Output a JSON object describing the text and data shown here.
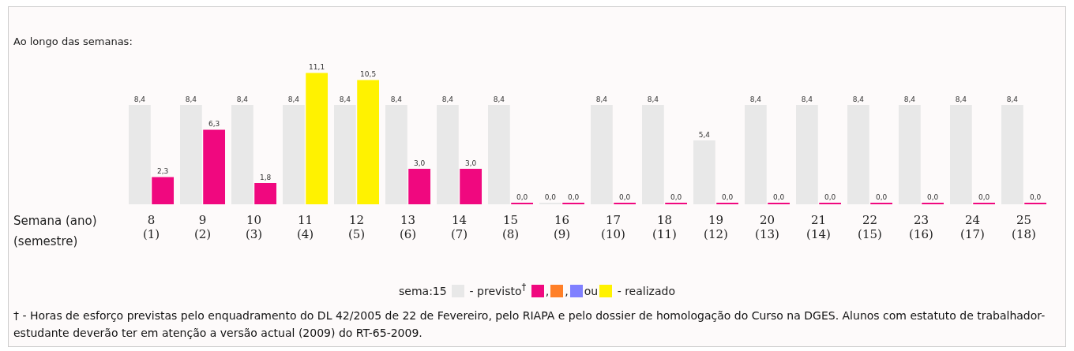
{
  "chart_data": {
    "type": "bar",
    "title": "Ao longo das semanas:",
    "xlabel": "Semana (ano)\n(semestre)",
    "categories": [
      "8\n(1)",
      "9\n(2)",
      "10\n(3)",
      "11\n(4)",
      "12\n(5)",
      "13\n(6)",
      "14\n(7)",
      "15\n(8)",
      "16\n(9)",
      "17\n(10)",
      "18\n(11)",
      "19\n(12)",
      "20\n(13)",
      "21\n(14)",
      "22\n(15)",
      "23\n(16)",
      "24\n(17)",
      "25\n(18)"
    ],
    "series": [
      {
        "name": "- previsto$^{†}$",
        "color": "#e8e8e8",
        "values": [
          8.4,
          8.4,
          8.4,
          8.4,
          8.4,
          8.4,
          8.4,
          8.4,
          0,
          8.4,
          8.4,
          5.4,
          8.4,
          8.4,
          8.4,
          8.4,
          8.4,
          8.4
        ],
        "value_labels": [
          "8,4",
          "8,4",
          "8,4",
          "8,4",
          "8,4",
          "8,4",
          "8,4",
          "8,4",
          "0,0",
          "8,4",
          "8,4",
          "5,4",
          "8,4",
          "8,4",
          "8,4",
          "8,4",
          "8,4",
          "8,4"
        ]
      },
      {
        "name": "- realizado",
        "color": "#f0087f",
        "colors": [
          "#f0087f",
          "#f0087f",
          "#f0087f",
          "#fff200",
          "#fff200",
          "#f0087f",
          "#f0087f",
          "#f0087f",
          "#f0087f",
          "#f0087f",
          "#f0087f",
          "#f0087f",
          "#f0087f",
          "#f0087f",
          "#f0087f",
          "#f0087f",
          "#f0087f",
          "#f0087f"
        ],
        "values": [
          2.3,
          6.3,
          1.8,
          11.1,
          10.5,
          3.0,
          3.0,
          0,
          0,
          0,
          0,
          0,
          0,
          0,
          0,
          0,
          0,
          0
        ],
        "value_labels": [
          "2,3",
          "6,3",
          "1,8",
          "11,1",
          "10,5",
          "3,0",
          "3,0",
          "0,0",
          "0,0",
          "0,0",
          "0,0",
          "0,0",
          "0,0",
          "0,0",
          "0,0",
          "0,0",
          "0,0",
          "0,0"
        ]
      }
    ],
    "tick_labels": "x",
    "grid": false,
    "legend": "bottom",
    "annotations": [
      "sema:15",
      ",",
      ",",
      "ou",
      "† - Horas de esforço previstas pelo enquadramento do DL 42/2005 de 22 de Fevereiro, pelo RIAPA e pelo dossier de homologação do Curso na DGES. Alunos com estatuto de trabalhador-estudante deverão ter em atenção a versão actual (2009) do RT-65-2009."
    ]
  }
}
